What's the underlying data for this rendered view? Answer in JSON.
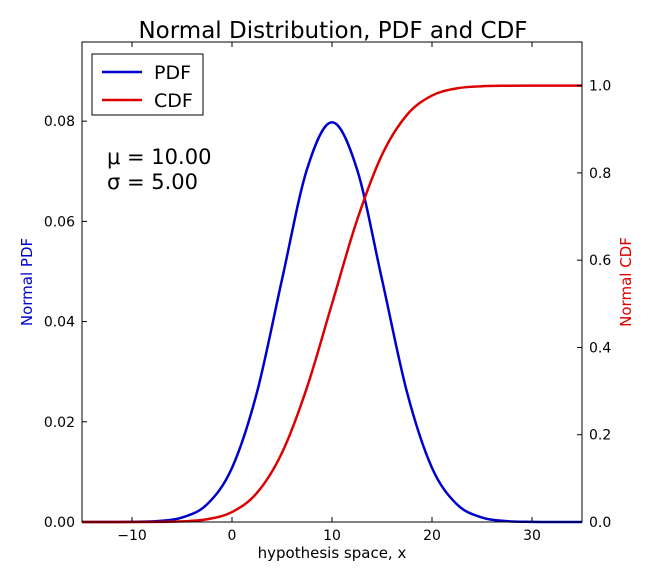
{
  "chart_data": {
    "type": "line",
    "title": "Normal Distribution, PDF and CDF",
    "xlabel": "hypothesis space, x",
    "ylabel_left": "Normal PDF",
    "ylabel_right": "Normal CDF",
    "xlim": [
      -15,
      35
    ],
    "ylim_left": [
      0,
      0.0958
    ],
    "ylim_right": [
      0,
      1.1
    ],
    "x_ticks": [
      "−10",
      "0",
      "10",
      "20",
      "30"
    ],
    "x_tick_values": [
      -10,
      0,
      10,
      20,
      30
    ],
    "y_left_ticks": [
      "0.00",
      "0.02",
      "0.04",
      "0.06",
      "0.08"
    ],
    "y_left_tick_values": [
      0,
      0.02,
      0.04,
      0.06,
      0.08
    ],
    "y_right_ticks": [
      "0.0",
      "0.2",
      "0.4",
      "0.6",
      "0.8",
      "1.0"
    ],
    "y_right_tick_values": [
      0,
      0.2,
      0.4,
      0.6,
      0.8,
      1.0
    ],
    "grid": false,
    "legend_position": "top-left",
    "annotations": [
      "μ = 10.00",
      "σ = 5.00"
    ],
    "x": [
      -15,
      -12.5,
      -10,
      -7.5,
      -5,
      -2.5,
      0,
      2.5,
      5,
      7.5,
      10,
      12.5,
      15,
      17.5,
      20,
      22.5,
      25,
      27.5,
      30,
      32.5,
      35
    ],
    "series": [
      {
        "name": "PDF",
        "axis": "left",
        "color": "#0000cc",
        "values": [
          0,
          0,
          3e-05,
          0.00017,
          0.00089,
          0.00351,
          0.0108,
          0.0259,
          0.04839,
          0.07041,
          0.07979,
          0.07041,
          0.04839,
          0.0259,
          0.0108,
          0.00351,
          0.00089,
          0.00017,
          3e-05,
          0,
          0
        ]
      },
      {
        "name": "CDF",
        "axis": "right",
        "color": "#dd0000",
        "values": [
          0,
          0,
          3e-05,
          0.00023,
          0.00135,
          0.00621,
          0.02275,
          0.06681,
          0.15866,
          0.30854,
          0.5,
          0.69146,
          0.84134,
          0.93319,
          0.97725,
          0.99379,
          0.99865,
          0.99977,
          0.99997,
          1,
          1
        ]
      }
    ]
  }
}
